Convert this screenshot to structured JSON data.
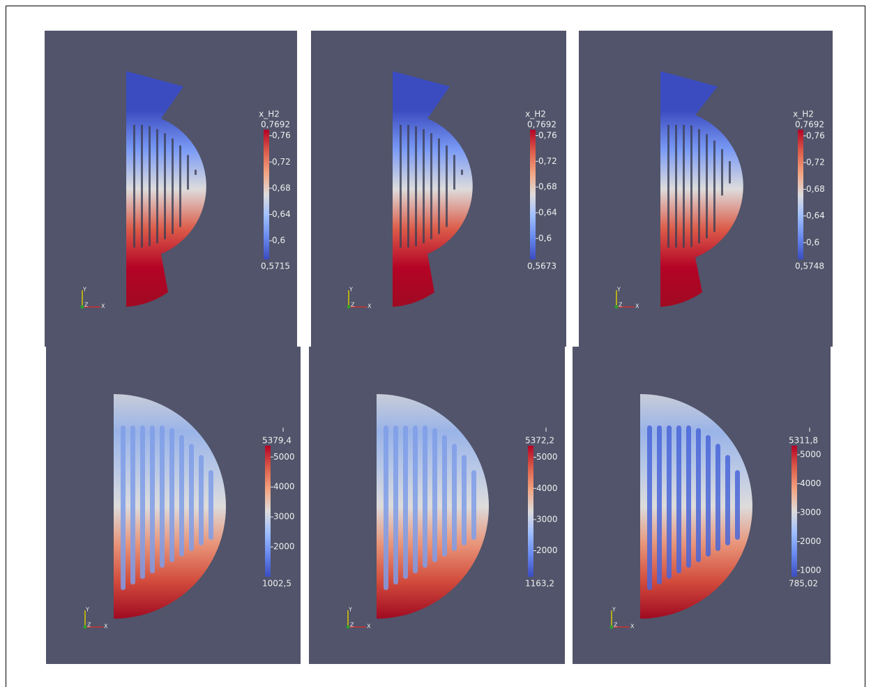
{
  "panels": [
    {
      "colorbar": {
        "title": "x_H2",
        "max": {
          "value": 0.7692,
          "label": "0,7692"
        },
        "min": {
          "value": 0.5715,
          "label": "0,5715"
        },
        "ticks": [
          {
            "value": 0.76,
            "label": "0,76"
          },
          {
            "value": 0.72,
            "label": "0,72"
          },
          {
            "value": 0.68,
            "label": "0,68"
          },
          {
            "value": 0.64,
            "label": "0,64"
          },
          {
            "value": 0.6,
            "label": "0,6"
          }
        ]
      },
      "triad": {
        "y": "Y",
        "z": "Z",
        "x": "X"
      }
    },
    {
      "colorbar": {
        "title": "x_H2",
        "max": {
          "value": 0.7692,
          "label": "0,7692"
        },
        "min": {
          "value": 0.5673,
          "label": "0,5673"
        },
        "ticks": [
          {
            "value": 0.76,
            "label": "0,76"
          },
          {
            "value": 0.72,
            "label": "0,72"
          },
          {
            "value": 0.68,
            "label": "0,68"
          },
          {
            "value": 0.64,
            "label": "0,64"
          },
          {
            "value": 0.6,
            "label": "0,6"
          }
        ]
      },
      "triad": {
        "y": "Y",
        "z": "Z",
        "x": "X"
      }
    },
    {
      "colorbar": {
        "title": "x_H2",
        "max": {
          "value": 0.7692,
          "label": "0,7692"
        },
        "min": {
          "value": 0.5748,
          "label": "0,5748"
        },
        "ticks": [
          {
            "value": 0.76,
            "label": "0,76"
          },
          {
            "value": 0.72,
            "label": "0,72"
          },
          {
            "value": 0.68,
            "label": "0,68"
          },
          {
            "value": 0.64,
            "label": "0,64"
          },
          {
            "value": 0.6,
            "label": "0,6"
          }
        ]
      },
      "triad": {
        "y": "Y",
        "z": "Z",
        "x": "X"
      }
    },
    {
      "colorbar": {
        "max": {
          "value": 5379.4,
          "label": "5379,4"
        },
        "min": {
          "value": 1002.5,
          "label": "1002,5"
        },
        "ticks": [
          5000,
          4000,
          3000,
          2000
        ]
      },
      "triad": {
        "y": "Y",
        "z": "Z",
        "x": "X"
      }
    },
    {
      "colorbar": {
        "max": {
          "value": 5372.2,
          "label": "5372,2"
        },
        "min": {
          "value": 1163.2,
          "label": "1163,2"
        },
        "ticks": [
          5000,
          4000,
          3000,
          2000
        ]
      },
      "triad": {
        "y": "Y",
        "z": "Z",
        "x": "X"
      }
    },
    {
      "colorbar": {
        "max": {
          "value": 5311.8,
          "label": "5311,8"
        },
        "min": {
          "value": 785.02,
          "label": "785,02"
        },
        "ticks": [
          5000,
          4000,
          3000,
          2000,
          1000
        ]
      },
      "triad": {
        "y": "Y",
        "z": "Z",
        "x": "X"
      }
    }
  ]
}
